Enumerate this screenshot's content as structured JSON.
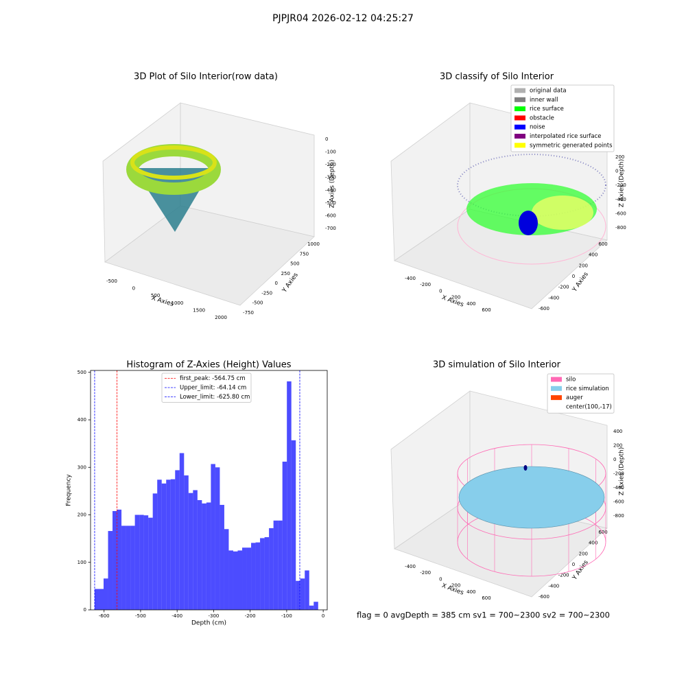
{
  "suptitle": "PJPJR04 2026-02-12 04:25:27",
  "footer": "flag = 0     avgDepth = 385 cm  sv1 = 700~2300  sv2 = 700~2300",
  "chart_data": [
    {
      "type": "scatter3d",
      "title": "3D Plot of Silo Interior(row data)",
      "xlabel": "X Axies",
      "ylabel": "Y Axies",
      "zlabel": "Z Axies (Depth)",
      "xticks": [
        -500,
        0,
        500,
        1000,
        1500,
        2000
      ],
      "yticks": [
        -750,
        -500,
        -250,
        0,
        250,
        500,
        750,
        1000
      ],
      "zticks": [
        0,
        -100,
        -200,
        -300,
        -400,
        -500,
        -600,
        -700
      ]
    },
    {
      "type": "scatter3d",
      "title": "3D classify of Silo Interior",
      "xlabel": "X Axies",
      "ylabel": "Y Axies",
      "zlabel": "Z Axies (Depth)",
      "xticks": [
        -400,
        -200,
        0,
        200,
        400,
        600
      ],
      "yticks": [
        -600,
        -400,
        -200,
        0,
        200,
        400,
        600
      ],
      "zticks": [
        200,
        0,
        -200,
        -400,
        -600,
        -800
      ],
      "series": [
        {
          "name": "original data",
          "color": "#b0b0b0"
        },
        {
          "name": "inner wall",
          "color": "#808080"
        },
        {
          "name": "rice surface",
          "color": "#00ff00"
        },
        {
          "name": "obstacle",
          "color": "#ff0000"
        },
        {
          "name": "noise",
          "color": "#0000ff"
        },
        {
          "name": "interpolated rice surface",
          "color": "#800080"
        },
        {
          "name": "symmetric generated points",
          "color": "#ffff00"
        }
      ]
    },
    {
      "type": "histogram",
      "title": "Histogram of Z-Axies (Height) Values",
      "xlabel": "Depth (cm)",
      "ylabel": "Frequency",
      "color": "#0000ff",
      "alpha": 0.7,
      "bins": [
        -625.8,
        -613.56,
        -601.32,
        -589.08,
        -576.84,
        -564.6,
        -552.36,
        -540.12,
        -527.88,
        -515.64,
        -503.4,
        -491.16,
        -478.92,
        -466.68,
        -454.44,
        -442.2,
        -429.96,
        -417.72,
        -405.48,
        -393.24,
        -381.0,
        -368.76,
        -356.52,
        -344.28,
        -332.04,
        -319.8,
        -307.56,
        -295.32,
        -283.08,
        -270.84,
        -258.6,
        -246.36,
        -234.12,
        -221.88,
        -209.64,
        -197.4,
        -185.16,
        -172.92,
        -160.68,
        -148.44,
        -136.2,
        -123.96,
        -111.72,
        -99.48,
        -87.24,
        -75.0,
        -62.76,
        -50.52,
        -38.28,
        -26.04,
        -13.8
      ],
      "counts": [
        44,
        44,
        66,
        166,
        208,
        211,
        177,
        177,
        177,
        200,
        200,
        199,
        194,
        245,
        274,
        266,
        274,
        275,
        294,
        330,
        283,
        246,
        252,
        231,
        224,
        226,
        307,
        300,
        221,
        170,
        125,
        123,
        125,
        131,
        131,
        141,
        142,
        151,
        153,
        172,
        188,
        188,
        312,
        481,
        357,
        61,
        66,
        83,
        9,
        17
      ],
      "xlim": [
        -637,
        11
      ],
      "ylim": [
        0,
        504
      ],
      "xticks": [
        -600,
        -500,
        -400,
        -300,
        -200,
        -100,
        0
      ],
      "yticks": [
        0,
        100,
        200,
        300,
        400,
        500
      ],
      "lines": [
        {
          "label": "first_peak: -564.75 cm",
          "value": -564.75,
          "color": "#ff0000"
        },
        {
          "label": "Upper_limit: -64.14 cm",
          "value": -64.14,
          "color": "#0000ff"
        },
        {
          "label": "Lower_limit: -625.80 cm",
          "value": -625.8,
          "color": "#0000ff"
        }
      ]
    },
    {
      "type": "surface3d",
      "title": "3D simulation of Silo Interior",
      "xlabel": "X Axies",
      "ylabel": "Y Axies",
      "zlabel": "Z Axies (Depth)",
      "xticks": [
        -400,
        -200,
        0,
        200,
        400,
        600
      ],
      "yticks": [
        -600,
        -400,
        -200,
        0,
        200,
        400,
        600
      ],
      "zticks": [
        400,
        200,
        0,
        -200,
        -400,
        -600,
        -800
      ],
      "series": [
        {
          "name": "silo",
          "color": "#ff69b4"
        },
        {
          "name": "rice simulation",
          "color": "#87ceeb"
        },
        {
          "name": "auger",
          "color": "#ff4500"
        },
        {
          "name": "center(100,-17)"
        }
      ]
    }
  ]
}
